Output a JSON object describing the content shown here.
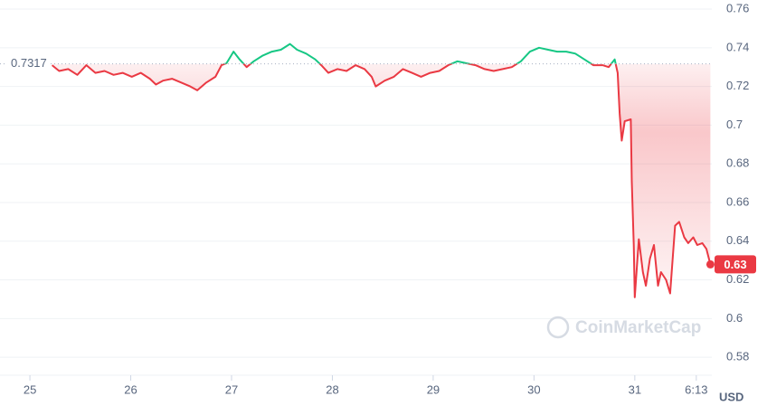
{
  "chart_data": {
    "type": "line",
    "x": [
      25.22,
      25.29,
      25.38,
      25.47,
      25.56,
      25.65,
      25.74,
      25.83,
      25.92,
      26.01,
      26.1,
      26.19,
      26.25,
      26.32,
      26.41,
      26.5,
      26.59,
      26.66,
      26.75,
      26.84,
      26.9,
      26.95,
      27.02,
      27.08,
      27.15,
      27.22,
      27.31,
      27.4,
      27.49,
      27.58,
      27.65,
      27.74,
      27.83,
      27.89,
      27.96,
      28.05,
      28.14,
      28.23,
      28.32,
      28.39,
      28.43,
      28.52,
      28.61,
      28.7,
      28.79,
      28.88,
      28.97,
      29.06,
      29.15,
      29.24,
      29.33,
      29.42,
      29.51,
      29.6,
      29.69,
      29.78,
      29.87,
      29.96,
      30.05,
      30.14,
      30.23,
      30.32,
      30.41,
      30.5,
      30.59,
      30.68,
      30.74,
      30.8,
      30.83,
      30.85,
      30.87,
      30.9,
      30.96,
      30.97,
      30.99,
      31.0,
      31.04,
      31.08,
      31.11,
      31.15,
      31.19,
      31.23,
      31.26,
      31.31,
      31.35,
      31.4,
      31.44,
      31.49,
      31.53,
      31.58,
      31.62,
      31.67,
      31.71,
      31.75
    ],
    "series": [
      {
        "name": "Price",
        "up_color": "#16c784",
        "down_color": "#ea3943",
        "values": [
          0.731,
          0.728,
          0.729,
          0.726,
          0.731,
          0.727,
          0.728,
          0.726,
          0.727,
          0.725,
          0.727,
          0.724,
          0.721,
          0.723,
          0.724,
          0.722,
          0.72,
          0.718,
          0.722,
          0.725,
          0.731,
          0.732,
          0.738,
          0.734,
          0.73,
          0.733,
          0.736,
          0.738,
          0.739,
          0.742,
          0.739,
          0.737,
          0.734,
          0.731,
          0.727,
          0.729,
          0.728,
          0.731,
          0.729,
          0.725,
          0.72,
          0.723,
          0.725,
          0.729,
          0.727,
          0.725,
          0.727,
          0.728,
          0.731,
          0.733,
          0.732,
          0.731,
          0.729,
          0.728,
          0.729,
          0.73,
          0.733,
          0.738,
          0.74,
          0.739,
          0.738,
          0.738,
          0.737,
          0.734,
          0.731,
          0.731,
          0.73,
          0.734,
          0.727,
          0.706,
          0.692,
          0.702,
          0.703,
          0.671,
          0.638,
          0.611,
          0.641,
          0.624,
          0.617,
          0.631,
          0.638,
          0.617,
          0.624,
          0.62,
          0.613,
          0.648,
          0.65,
          0.642,
          0.639,
          0.642,
          0.638,
          0.639,
          0.636,
          0.628
        ]
      }
    ],
    "reference": 0.7317,
    "last_price_label": "0.63",
    "currency": "USD",
    "watermark": "CoinMarketCap",
    "xlim": [
      24.775,
      31.764
    ],
    "xticks": [
      25,
      26,
      27,
      28,
      29,
      30,
      31,
      {
        "value": 31.61,
        "label": "6:13"
      }
    ],
    "ylim": [
      0.5707,
      0.7647
    ],
    "yticks": [
      0.58,
      0.6,
      0.62,
      0.64,
      0.66,
      0.68,
      0.7,
      0.72,
      0.74,
      0.76
    ],
    "grid": true
  }
}
